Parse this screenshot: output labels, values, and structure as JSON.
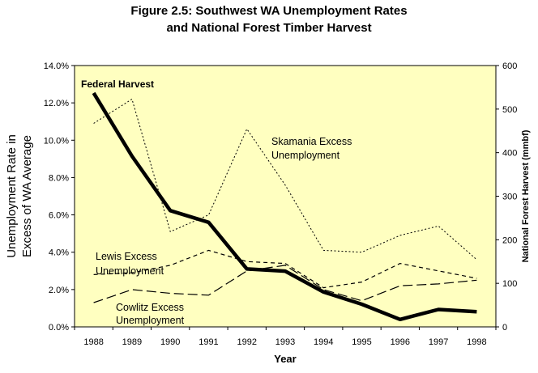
{
  "title_line1": "Figure 2.5: Southwest WA Unemployment Rates",
  "title_line2": "and National Forest Timber Harvest",
  "chart_data": {
    "type": "line",
    "x": [
      1988,
      1989,
      1990,
      1991,
      1992,
      1993,
      1994,
      1995,
      1996,
      1997,
      1998
    ],
    "xlabel": "Year",
    "ylabel_left_line1": "Unemployment Rate in",
    "ylabel_left_line2": "Excess of WA Average",
    "ylabel_right": "National Forest Harvest (mmbf)",
    "left_axis": {
      "ylim": [
        0,
        14
      ],
      "ticks": [
        0,
        2,
        4,
        6,
        8,
        10,
        12,
        14
      ],
      "tick_labels": [
        "0.0%",
        "2.0%",
        "4.0%",
        "6.0%",
        "8.0%",
        "10.0%",
        "12.0%",
        "14.0%"
      ]
    },
    "right_axis": {
      "ylim": [
        0,
        600
      ],
      "ticks": [
        0,
        100,
        200,
        300,
        400,
        500,
        600
      ],
      "tick_labels": [
        "0",
        "100",
        "200",
        "300",
        "400",
        "500",
        "600"
      ]
    },
    "plot_background": "#ffffc0",
    "grid": false,
    "series": [
      {
        "name": "Federal Harvest",
        "axis": "right",
        "style": "solid-thick",
        "color": "#000000",
        "values": [
          537,
          392,
          267,
          240,
          133,
          128,
          80,
          52,
          17,
          40,
          35
        ],
        "label": "Federal Harvest"
      },
      {
        "name": "Skamania Excess Unemployment",
        "axis": "left",
        "style": "dotted",
        "color": "#000000",
        "values": [
          10.9,
          12.2,
          5.1,
          6.0,
          10.6,
          7.6,
          4.1,
          4.0,
          4.9,
          5.4,
          3.6
        ],
        "label": "Skamania Excess Unemployment"
      },
      {
        "name": "Lewis Excess Unemployment",
        "axis": "left",
        "style": "dashed-short",
        "color": "#000000",
        "values": [
          2.8,
          2.9,
          3.3,
          4.1,
          3.5,
          3.4,
          2.1,
          2.4,
          3.4,
          3.0,
          2.6
        ],
        "label": "Lewis Excess Unemployment"
      },
      {
        "name": "Cowlitz Excess Unemployment",
        "axis": "left",
        "style": "dashed-long",
        "color": "#000000",
        "values": [
          1.3,
          2.0,
          1.8,
          1.7,
          3.0,
          3.3,
          2.0,
          1.4,
          2.2,
          2.3,
          2.5
        ],
        "label": "Cowlitz Excess Unemployment"
      }
    ],
    "annotations": {
      "federal": "Federal Harvest",
      "skamania_line1": "Skamania Excess",
      "skamania_line2": "Unemployment",
      "lewis_line1": "Lewis Excess",
      "lewis_line2": "Unemployment",
      "cowlitz_line1": "Cowlitz Excess",
      "cowlitz_line2": "Unemployment"
    }
  }
}
